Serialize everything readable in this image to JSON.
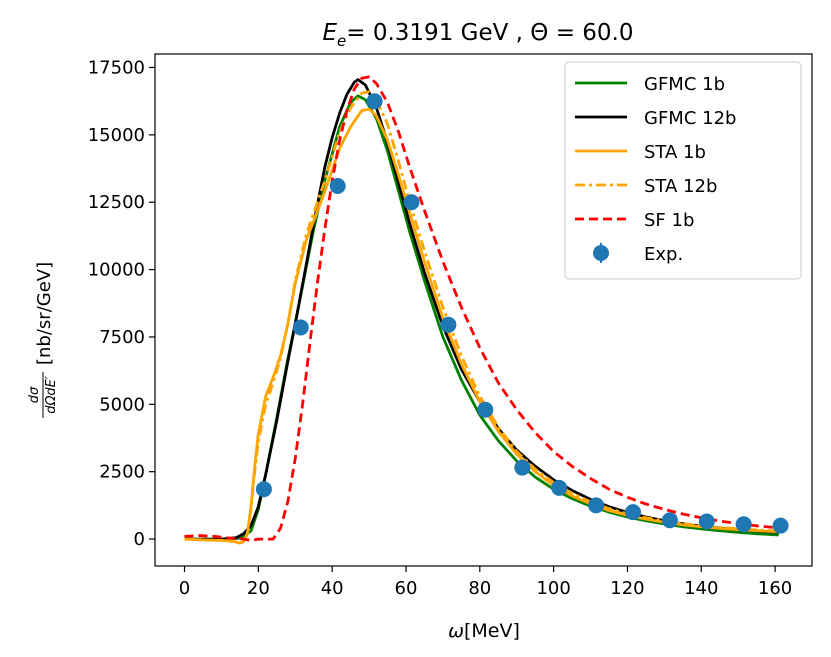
{
  "chart_data": {
    "type": "line",
    "title": {
      "prefix": "E",
      "subscript": "e",
      "rest": "= 0.3191 GeV , Θ = 60.0"
    },
    "xlabel": {
      "symbol": "ω",
      "unit": "[MeV]"
    },
    "ylabel": {
      "num": "dσ",
      "den": "dΩdE′",
      "unit": "[nb/sr/GeV]"
    },
    "xlim": [
      -8,
      170
    ],
    "ylim": [
      -1000,
      18000
    ],
    "x_ticks": [
      0,
      20,
      40,
      60,
      80,
      100,
      120,
      140,
      160
    ],
    "y_ticks": [
      0,
      2500,
      5000,
      7500,
      10000,
      12500,
      15000,
      17500
    ],
    "series": [
      {
        "name": "GFMC 1b",
        "color": "#008000",
        "style": "solid",
        "points": [
          [
            0,
            0
          ],
          [
            5,
            0
          ],
          [
            10,
            0
          ],
          [
            15,
            30
          ],
          [
            18,
            300
          ],
          [
            20,
            1100
          ],
          [
            22,
            2400
          ],
          [
            25,
            4500
          ],
          [
            28,
            6700
          ],
          [
            30,
            8000
          ],
          [
            33,
            10100
          ],
          [
            35,
            11500
          ],
          [
            38,
            13300
          ],
          [
            40,
            14300
          ],
          [
            42,
            15300
          ],
          [
            45,
            16200
          ],
          [
            47,
            16450
          ],
          [
            49,
            16300
          ],
          [
            52,
            15600
          ],
          [
            55,
            14400
          ],
          [
            58,
            12900
          ],
          [
            61,
            11400
          ],
          [
            65,
            9600
          ],
          [
            70,
            7500
          ],
          [
            75,
            5900
          ],
          [
            80,
            4600
          ],
          [
            85,
            3650
          ],
          [
            90,
            2900
          ],
          [
            95,
            2300
          ],
          [
            100,
            1850
          ],
          [
            105,
            1500
          ],
          [
            110,
            1220
          ],
          [
            115,
            1000
          ],
          [
            120,
            820
          ],
          [
            125,
            680
          ],
          [
            130,
            560
          ],
          [
            135,
            460
          ],
          [
            140,
            380
          ],
          [
            145,
            310
          ],
          [
            150,
            250
          ],
          [
            155,
            200
          ],
          [
            161,
            150
          ]
        ]
      },
      {
        "name": "GFMC 12b",
        "color": "#000000",
        "style": "solid",
        "points": [
          [
            0,
            0
          ],
          [
            5,
            0
          ],
          [
            10,
            0
          ],
          [
            14,
            50
          ],
          [
            16,
            200
          ],
          [
            18,
            500
          ],
          [
            20,
            1200
          ],
          [
            22,
            2400
          ],
          [
            25,
            4400
          ],
          [
            28,
            6600
          ],
          [
            30,
            8000
          ],
          [
            33,
            10200
          ],
          [
            35,
            11700
          ],
          [
            38,
            13800
          ],
          [
            40,
            14900
          ],
          [
            42,
            15800
          ],
          [
            44,
            16500
          ],
          [
            46,
            16950
          ],
          [
            47,
            17050
          ],
          [
            49,
            16850
          ],
          [
            52,
            16000
          ],
          [
            55,
            14700
          ],
          [
            58,
            13200
          ],
          [
            61,
            11700
          ],
          [
            65,
            9900
          ],
          [
            70,
            7900
          ],
          [
            75,
            6300
          ],
          [
            80,
            5100
          ],
          [
            85,
            4100
          ],
          [
            90,
            3300
          ],
          [
            95,
            2700
          ],
          [
            100,
            2200
          ],
          [
            105,
            1800
          ],
          [
            110,
            1470
          ],
          [
            115,
            1200
          ],
          [
            120,
            990
          ],
          [
            125,
            820
          ],
          [
            130,
            680
          ],
          [
            135,
            570
          ],
          [
            140,
            480
          ],
          [
            145,
            410
          ],
          [
            150,
            350
          ],
          [
            155,
            300
          ],
          [
            161,
            250
          ]
        ]
      },
      {
        "name": "STA 1b",
        "color": "#ffa500",
        "style": "solid",
        "points": [
          [
            0,
            0
          ],
          [
            5,
            -30
          ],
          [
            10,
            -50
          ],
          [
            13,
            -80
          ],
          [
            15,
            -150
          ],
          [
            16,
            -100
          ],
          [
            17,
            200
          ],
          [
            18,
            1200
          ],
          [
            19,
            2700
          ],
          [
            20,
            3900
          ],
          [
            22,
            5300
          ],
          [
            24,
            6000
          ],
          [
            26,
            6800
          ],
          [
            28,
            8000
          ],
          [
            30,
            9500
          ],
          [
            33,
            11100
          ],
          [
            35,
            11800
          ],
          [
            38,
            12900
          ],
          [
            40,
            13700
          ],
          [
            42,
            14500
          ],
          [
            45,
            15300
          ],
          [
            48,
            15900
          ],
          [
            50,
            15950
          ],
          [
            52,
            15700
          ],
          [
            55,
            14800
          ],
          [
            58,
            13500
          ],
          [
            61,
            12100
          ],
          [
            65,
            10300
          ],
          [
            70,
            8200
          ],
          [
            75,
            6500
          ],
          [
            80,
            5100
          ],
          [
            85,
            4000
          ],
          [
            90,
            3150
          ],
          [
            95,
            2500
          ],
          [
            100,
            2000
          ],
          [
            105,
            1600
          ],
          [
            110,
            1300
          ],
          [
            115,
            1060
          ],
          [
            120,
            880
          ],
          [
            125,
            740
          ],
          [
            130,
            620
          ],
          [
            135,
            530
          ],
          [
            140,
            460
          ],
          [
            145,
            400
          ],
          [
            150,
            350
          ],
          [
            155,
            310
          ],
          [
            161,
            270
          ]
        ]
      },
      {
        "name": "STA 12b",
        "color": "#ffa500",
        "style": "dashdot",
        "points": [
          [
            0,
            0
          ],
          [
            5,
            -30
          ],
          [
            10,
            -50
          ],
          [
            13,
            -80
          ],
          [
            15,
            -150
          ],
          [
            16,
            -100
          ],
          [
            17,
            200
          ],
          [
            18,
            1100
          ],
          [
            19,
            2500
          ],
          [
            20,
            3600
          ],
          [
            22,
            5000
          ],
          [
            24,
            5800
          ],
          [
            26,
            6700
          ],
          [
            28,
            8000
          ],
          [
            30,
            9600
          ],
          [
            33,
            11300
          ],
          [
            35,
            12100
          ],
          [
            38,
            13300
          ],
          [
            40,
            14200
          ],
          [
            42,
            15100
          ],
          [
            45,
            16000
          ],
          [
            48,
            16550
          ],
          [
            50,
            16600
          ],
          [
            52,
            16300
          ],
          [
            55,
            15400
          ],
          [
            58,
            14000
          ],
          [
            61,
            12500
          ],
          [
            65,
            10700
          ],
          [
            70,
            8600
          ],
          [
            75,
            6800
          ],
          [
            80,
            5300
          ],
          [
            85,
            4150
          ],
          [
            90,
            3250
          ],
          [
            95,
            2600
          ],
          [
            100,
            2100
          ],
          [
            105,
            1700
          ],
          [
            110,
            1380
          ],
          [
            115,
            1130
          ],
          [
            120,
            940
          ],
          [
            125,
            790
          ],
          [
            130,
            670
          ],
          [
            135,
            570
          ],
          [
            140,
            490
          ],
          [
            145,
            430
          ],
          [
            150,
            380
          ],
          [
            155,
            340
          ],
          [
            161,
            300
          ]
        ]
      },
      {
        "name": "SF 1b",
        "color": "#ff0000",
        "style": "dashed",
        "points": [
          [
            0,
            100
          ],
          [
            4,
            130
          ],
          [
            8,
            100
          ],
          [
            12,
            40
          ],
          [
            16,
            0
          ],
          [
            18,
            -50
          ],
          [
            20,
            0
          ],
          [
            22,
            0
          ],
          [
            24,
            0
          ],
          [
            26,
            400
          ],
          [
            28,
            1400
          ],
          [
            30,
            3000
          ],
          [
            32,
            5000
          ],
          [
            34,
            7300
          ],
          [
            36,
            9500
          ],
          [
            38,
            11500
          ],
          [
            40,
            13300
          ],
          [
            42,
            14800
          ],
          [
            44,
            15900
          ],
          [
            46,
            16700
          ],
          [
            48,
            17100
          ],
          [
            50,
            17150
          ],
          [
            52,
            16900
          ],
          [
            55,
            16200
          ],
          [
            58,
            15100
          ],
          [
            61,
            13800
          ],
          [
            65,
            12200
          ],
          [
            70,
            10300
          ],
          [
            75,
            8600
          ],
          [
            80,
            7100
          ],
          [
            85,
            5800
          ],
          [
            90,
            4800
          ],
          [
            95,
            3950
          ],
          [
            100,
            3250
          ],
          [
            105,
            2700
          ],
          [
            110,
            2250
          ],
          [
            115,
            1850
          ],
          [
            120,
            1550
          ],
          [
            125,
            1300
          ],
          [
            130,
            1100
          ],
          [
            135,
            930
          ],
          [
            140,
            790
          ],
          [
            145,
            670
          ],
          [
            150,
            570
          ],
          [
            155,
            490
          ],
          [
            161,
            410
          ]
        ]
      }
    ],
    "exp": {
      "name": "Exp.",
      "color": "#1f77b4",
      "points": [
        [
          21.5,
          1850
        ],
        [
          31.5,
          7850
        ],
        [
          41.5,
          13100
        ],
        [
          51.5,
          16250
        ],
        [
          61.5,
          12500
        ],
        [
          71.5,
          7950
        ],
        [
          81.5,
          4800
        ],
        [
          91.5,
          2650
        ],
        [
          101.5,
          1900
        ],
        [
          111.5,
          1250
        ],
        [
          121.5,
          1000
        ],
        [
          131.5,
          700
        ],
        [
          141.5,
          650
        ],
        [
          151.5,
          550
        ],
        [
          161.5,
          500
        ]
      ]
    },
    "legend": {
      "location": "top-right",
      "entries": [
        "GFMC 1b",
        "GFMC 12b",
        "STA 1b",
        "STA 12b",
        "SF 1b",
        "Exp."
      ]
    }
  }
}
